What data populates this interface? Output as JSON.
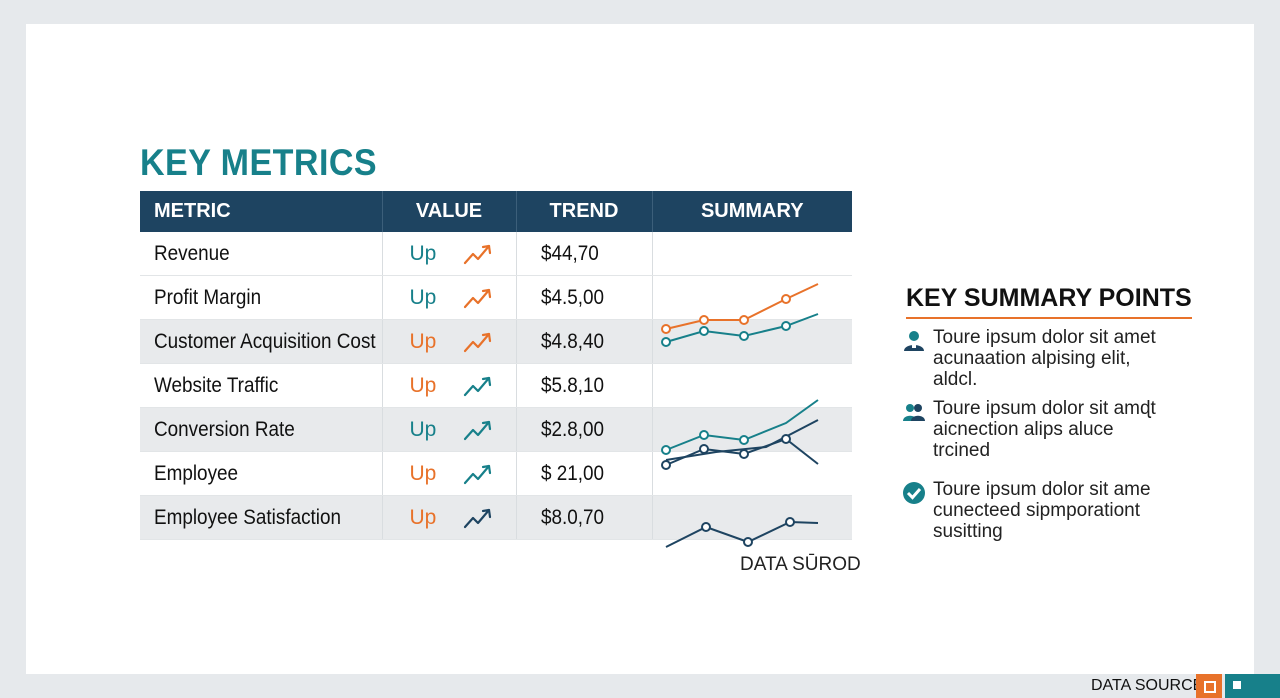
{
  "title": "KEY METRICS",
  "table": {
    "headers": [
      "METRIC",
      "VALUE",
      "TREND",
      "SUMMARY"
    ],
    "rows": [
      {
        "metric": "Revenue",
        "value": "Up",
        "value_color": "#17808a",
        "arrow_color": "#e8722a",
        "trend": "$44,70"
      },
      {
        "metric": "Profit Margin",
        "value": "Up",
        "value_color": "#17808a",
        "arrow_color": "#e8722a",
        "trend": "$4.5,00"
      },
      {
        "metric": "Customer Acquisition Cost",
        "value": "Up",
        "value_color": "#e8722a",
        "arrow_color": "#e8722a",
        "trend": "$4.8,40"
      },
      {
        "metric": "Website Traffic",
        "value": "Up",
        "value_color": "#e8722a",
        "arrow_color": "#17808a",
        "trend": "$5.8,10"
      },
      {
        "metric": "Conversion Rate",
        "value": "Up",
        "value_color": "#17808a",
        "arrow_color": "#17808a",
        "trend": "$2.8,00"
      },
      {
        "metric": "Employee",
        "value": "Up",
        "value_color": "#e8722a",
        "arrow_color": "#17808a",
        "trend": "$ 21,00"
      },
      {
        "metric": "Employee Satisfaction",
        "value": "Up",
        "value_color": "#e8722a",
        "arrow_color": "#1e4461",
        "trend": "$8.0,70"
      }
    ]
  },
  "data_source_label": "DATA SŪROD",
  "summary": {
    "title": "KEY SUMMARY POINTS",
    "items": [
      {
        "icon": "person-icon",
        "text": "Toure ipsum dolor sit amet acunaation alpising elit, aldcl."
      },
      {
        "icon": "people-icon",
        "text": "Toure ipsum dolor sit amɖt aicnection alips aluce trcined"
      },
      {
        "icon": "checkmark-icon",
        "text": "Toure ipsum dolor sit ame cunecteed sipmporationt susitting"
      }
    ]
  },
  "footer": {
    "source": "DATA SOURCE"
  },
  "colors": {
    "teal": "#17808a",
    "orange": "#e8722a",
    "navy": "#1e4461",
    "header_bg": "#1e4461",
    "row_shade": "#e8eaec"
  }
}
